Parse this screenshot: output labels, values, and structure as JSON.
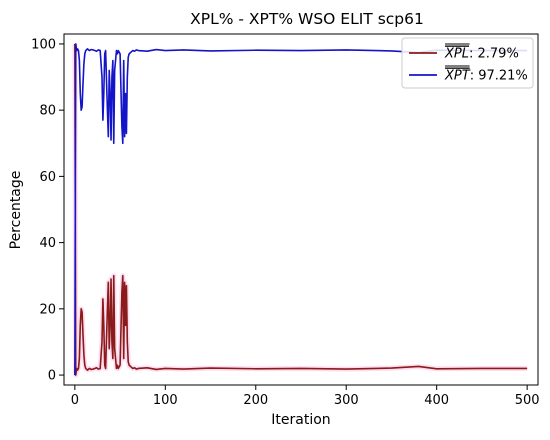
{
  "chart_data": {
    "type": "line",
    "title": "XPL% - XPT% WSO ELIT scp61",
    "xlabel": "Iteration",
    "ylabel": "Percentage",
    "xlim": [
      -12,
      512
    ],
    "ylim": [
      -3,
      103
    ],
    "xticks": [
      0,
      100,
      200,
      300,
      400,
      500
    ],
    "yticks": [
      0,
      20,
      40,
      60,
      80,
      100
    ],
    "xtick_labels": [
      "0",
      "100",
      "200",
      "300",
      "400",
      "500"
    ],
    "ytick_labels": [
      "0",
      "20",
      "40",
      "60",
      "80",
      "100"
    ],
    "grid": false,
    "legend_position": "top-right",
    "series": [
      {
        "name_var": "XPL",
        "name_suffix": ": 2.79%",
        "color": "#8b1a1a",
        "band_color": "#ffb3e0",
        "x": [
          0,
          1,
          2,
          3,
          4,
          5,
          6,
          7,
          8,
          9,
          10,
          11,
          12,
          14,
          16,
          18,
          20,
          22,
          24,
          26,
          28,
          30,
          31,
          32,
          33,
          34,
          36,
          37,
          38,
          39,
          40,
          41,
          42,
          43,
          44,
          45,
          46,
          47,
          48,
          50,
          52,
          53,
          54,
          55,
          56,
          57,
          58,
          59,
          60,
          62,
          64,
          66,
          68,
          70,
          80,
          90,
          100,
          120,
          150,
          200,
          250,
          300,
          350,
          380,
          400,
          450,
          500
        ],
        "values": [
          100,
          0,
          2,
          1.5,
          2,
          5,
          15,
          20,
          19,
          12,
          6,
          3,
          2,
          1.5,
          2,
          1.7,
          1.8,
          2,
          2.2,
          1.8,
          2,
          10,
          23,
          15,
          3,
          2,
          20,
          28,
          8,
          15,
          29,
          10,
          5,
          30,
          8,
          5,
          2,
          3,
          2,
          3,
          25,
          30,
          5,
          28,
          15,
          27,
          10,
          4,
          3,
          2.5,
          2,
          2.2,
          1.8,
          2,
          2.2,
          1.7,
          2,
          1.8,
          2.1,
          1.9,
          2,
          1.8,
          2.1,
          2.6,
          1.9,
          2,
          2
        ]
      },
      {
        "name_var": "XPT",
        "name_suffix": ": 97.21%",
        "color": "#1414c8",
        "x": [
          0,
          1,
          2,
          3,
          4,
          5,
          6,
          7,
          8,
          9,
          10,
          11,
          12,
          14,
          16,
          18,
          20,
          22,
          24,
          26,
          28,
          30,
          31,
          32,
          33,
          34,
          36,
          37,
          38,
          39,
          40,
          41,
          42,
          43,
          44,
          45,
          46,
          47,
          48,
          50,
          52,
          53,
          54,
          55,
          56,
          57,
          58,
          59,
          60,
          62,
          64,
          66,
          68,
          70,
          80,
          90,
          100,
          120,
          150,
          200,
          250,
          300,
          350,
          380,
          400,
          450,
          500
        ],
        "values": [
          0,
          100,
          98,
          98.5,
          98,
          95,
          85,
          80,
          81,
          88,
          94,
          97,
          98,
          98.5,
          98,
          98.3,
          98.2,
          98,
          97.8,
          98.2,
          98,
          90,
          77,
          85,
          97,
          98,
          80,
          72,
          92,
          85,
          71,
          90,
          95,
          70,
          92,
          95,
          98,
          97,
          98,
          97,
          75,
          70,
          95,
          72,
          85,
          73,
          90,
          96,
          97,
          97.5,
          98,
          97.8,
          98.2,
          98,
          97.8,
          98.3,
          98,
          98.2,
          97.9,
          98.1,
          98,
          98.2,
          97.9,
          97.4,
          98.1,
          98,
          98
        ]
      }
    ]
  }
}
